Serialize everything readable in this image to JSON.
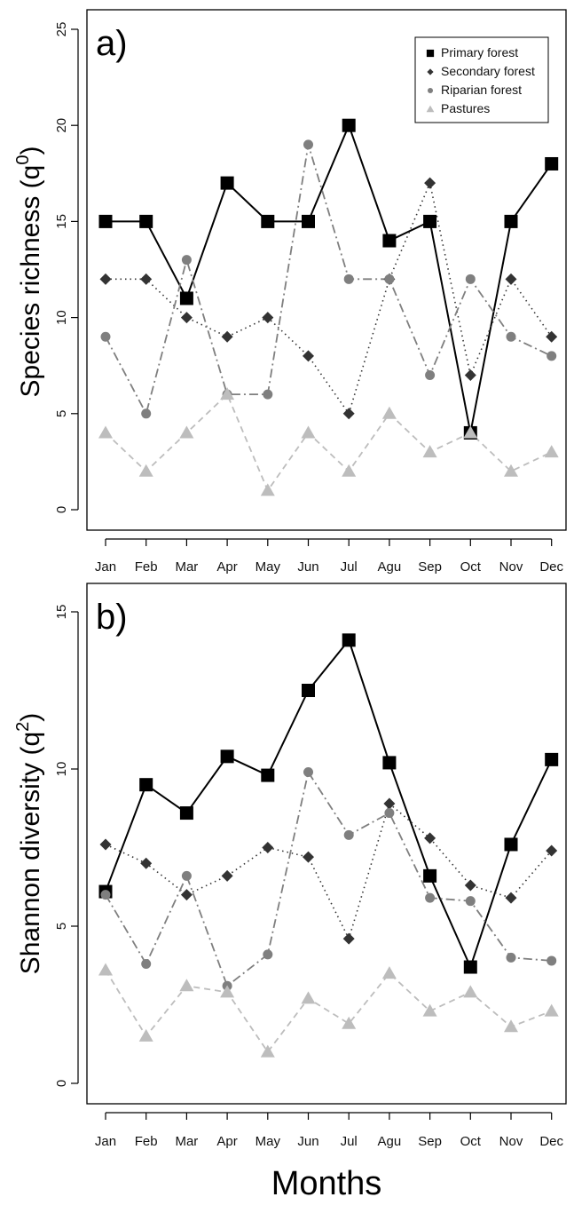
{
  "xlabel": "Months",
  "chart_data": [
    {
      "type": "line",
      "panel": "a)",
      "ylabel": "Species richness (q0)",
      "ylabel_base": "Species richness (q",
      "ylabel_sup": "0",
      "ylabel_close": ")",
      "xlabel": "Months",
      "ylim": [
        0,
        25
      ],
      "yticks": [
        "0",
        "5",
        "10",
        "15",
        "20",
        "25"
      ],
      "categories": [
        "Jan",
        "Feb",
        "Mar",
        "Apr",
        "May",
        "Jun",
        "Jul",
        "Agu",
        "Sep",
        "Oct",
        "Nov",
        "Dec"
      ],
      "legend_position": "top-right",
      "series": [
        {
          "name": "Primary forest",
          "color": "#000000",
          "values": [
            15,
            15,
            11,
            17,
            15,
            15,
            20,
            14,
            15,
            4,
            15,
            18
          ]
        },
        {
          "name": "Secondary forest",
          "color": "#333333",
          "values": [
            12,
            12,
            10,
            9,
            10,
            8,
            5,
            12,
            17,
            7,
            12,
            9
          ]
        },
        {
          "name": "Riparian forest",
          "color": "#7f7f7f",
          "values": [
            9,
            5,
            13,
            6,
            6,
            19,
            12,
            12,
            7,
            12,
            9,
            8
          ]
        },
        {
          "name": "Pastures",
          "color": "#bdbdbd",
          "values": [
            4,
            2,
            4,
            6,
            1,
            4,
            2,
            5,
            3,
            4,
            2,
            3
          ]
        }
      ]
    },
    {
      "type": "line",
      "panel": "b)",
      "ylabel": "Shannon diversity (q2)",
      "ylabel_base": "Shannon diversity (q",
      "ylabel_sup": "2",
      "ylabel_close": ")",
      "xlabel": "Months",
      "ylim": [
        0,
        15
      ],
      "yticks": [
        "0",
        "5",
        "10",
        "15"
      ],
      "categories": [
        "Jan",
        "Feb",
        "Mar",
        "Apr",
        "May",
        "Jun",
        "Jul",
        "Agu",
        "Sep",
        "Oct",
        "Nov",
        "Dec"
      ],
      "series": [
        {
          "name": "Primary forest",
          "color": "#000000",
          "values": [
            6.1,
            9.5,
            8.6,
            10.4,
            9.8,
            12.5,
            14.1,
            10.2,
            6.6,
            3.7,
            7.6,
            10.3
          ]
        },
        {
          "name": "Secondary forest",
          "color": "#333333",
          "values": [
            7.6,
            7.0,
            6.0,
            6.6,
            7.5,
            7.2,
            4.6,
            8.9,
            7.8,
            6.3,
            5.9,
            7.4
          ]
        },
        {
          "name": "Riparian forest",
          "color": "#7f7f7f",
          "values": [
            6.0,
            3.8,
            6.6,
            3.1,
            4.1,
            9.9,
            7.9,
            8.6,
            5.9,
            5.8,
            4.0,
            3.9
          ]
        },
        {
          "name": "Pastures",
          "color": "#bdbdbd",
          "values": [
            3.6,
            1.5,
            3.1,
            2.9,
            1.0,
            2.7,
            1.9,
            3.5,
            2.3,
            2.9,
            1.8,
            2.3
          ]
        }
      ]
    }
  ]
}
